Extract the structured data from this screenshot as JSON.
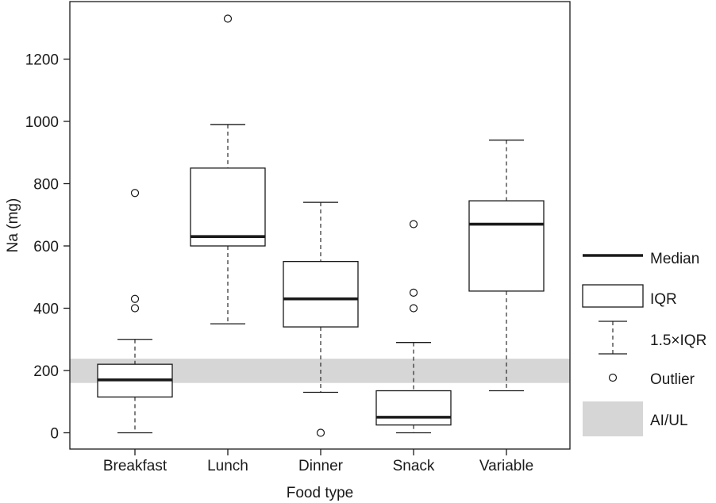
{
  "chart_data": {
    "type": "box",
    "xlabel": "Food type",
    "ylabel": "Na (mg)",
    "ylim": [
      -50,
      1390
    ],
    "yticks": [
      0,
      200,
      400,
      600,
      800,
      1000,
      1200
    ],
    "categories": [
      "Breakfast",
      "Lunch",
      "Dinner",
      "Snack",
      "Variable"
    ],
    "boxes": [
      {
        "category": "Breakfast",
        "whisker_low": 0,
        "q1": 115,
        "median": 170,
        "q3": 220,
        "whisker_high": 300,
        "outliers": [
          400,
          430,
          770
        ]
      },
      {
        "category": "Lunch",
        "whisker_low": 350,
        "q1": 600,
        "median": 630,
        "q3": 850,
        "whisker_high": 990,
        "outliers": [
          1330
        ]
      },
      {
        "category": "Dinner",
        "whisker_low": 130,
        "q1": 340,
        "median": 430,
        "q3": 550,
        "whisker_high": 740,
        "outliers": [
          0
        ]
      },
      {
        "category": "Snack",
        "whisker_low": 0,
        "q1": 25,
        "median": 50,
        "q3": 135,
        "whisker_high": 290,
        "outliers": [
          400,
          450,
          670
        ]
      },
      {
        "category": "Variable",
        "whisker_low": 135,
        "q1": 455,
        "median": 670,
        "q3": 745,
        "whisker_high": 940,
        "outliers": []
      }
    ],
    "reference_band": {
      "label": "AI/UL",
      "low": 160,
      "high": 238,
      "color": "#d6d6d7"
    },
    "grid": false,
    "legend": {
      "placement": "right",
      "items": [
        {
          "key": "median",
          "label": "Median"
        },
        {
          "key": "iqr",
          "label": "IQR"
        },
        {
          "key": "whisker",
          "label": "1.5×IQR"
        },
        {
          "key": "outlier",
          "label": "Outlier"
        },
        {
          "key": "band",
          "label": "AI/UL"
        }
      ]
    },
    "colors": {
      "axis": "#1a1a1a",
      "box_fill": "#ffffff",
      "median": "#1a1a1a",
      "band": "#d6d6d7"
    }
  }
}
